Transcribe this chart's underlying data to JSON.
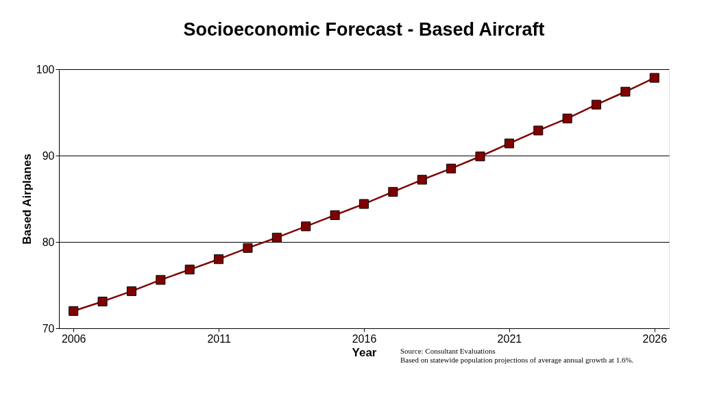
{
  "chart_data": {
    "type": "line",
    "title": "Socioeconomic Forecast - Based Aircraft",
    "xlabel": "Year",
    "ylabel": "Based Airplanes",
    "x": [
      2006,
      2007,
      2008,
      2009,
      2010,
      2011,
      2012,
      2013,
      2014,
      2015,
      2016,
      2017,
      2018,
      2019,
      2020,
      2021,
      2022,
      2023,
      2024,
      2025,
      2026
    ],
    "series": [
      {
        "color": "#800000",
        "values": [
          72.0,
          73.1,
          74.3,
          75.6,
          76.8,
          78.0,
          79.3,
          80.5,
          81.8,
          83.1,
          84.4,
          85.8,
          87.2,
          88.5,
          89.9,
          91.4,
          92.9,
          94.3,
          95.9,
          97.4,
          99.0
        ]
      }
    ],
    "xlim": [
      2005.5,
      2026.5
    ],
    "xticks": [
      2006,
      2011,
      2016,
      2021,
      2026
    ],
    "ylim": [
      70,
      100
    ],
    "yticks": [
      70,
      80,
      90,
      100
    ],
    "grid": "y",
    "marker": "square",
    "line_style": "solid",
    "annotations": [
      "Source: Consultant Evaluations",
      "Based on statewide population projections of average annual growth at 1.6%."
    ]
  }
}
